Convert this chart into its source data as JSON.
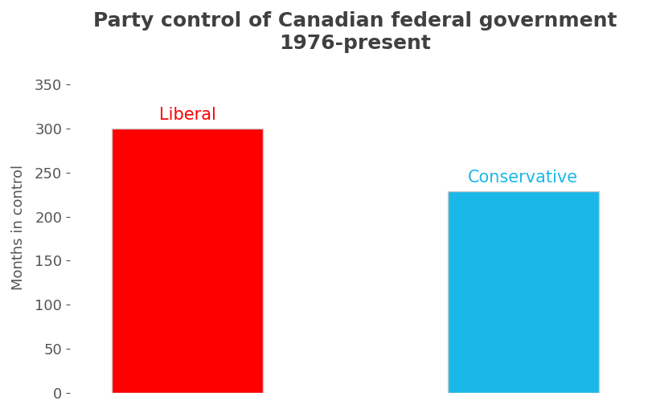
{
  "title": "Party control of Canadian federal government\n1976-present",
  "categories": [
    "Liberal",
    "Conservative"
  ],
  "values": [
    300,
    229
  ],
  "bar_colors": [
    "#ff0000",
    "#1ab8e8"
  ],
  "label_colors": [
    "#ff0000",
    "#1ab8e8"
  ],
  "ylabel": "Months in control",
  "ylim": [
    0,
    375
  ],
  "yticks": [
    0,
    50,
    100,
    150,
    200,
    250,
    300,
    350
  ],
  "bar_positions": [
    1,
    3
  ],
  "bar_width": 0.9,
  "title_fontsize": 18,
  "label_fontsize": 15,
  "ylabel_fontsize": 13,
  "tick_fontsize": 13,
  "background_color": "#ffffff",
  "title_color": "#404040",
  "tick_color": "#555555",
  "ylabel_color": "#555555",
  "bar_edge_color": "#cccccc",
  "bar_edge_width": 1.0
}
